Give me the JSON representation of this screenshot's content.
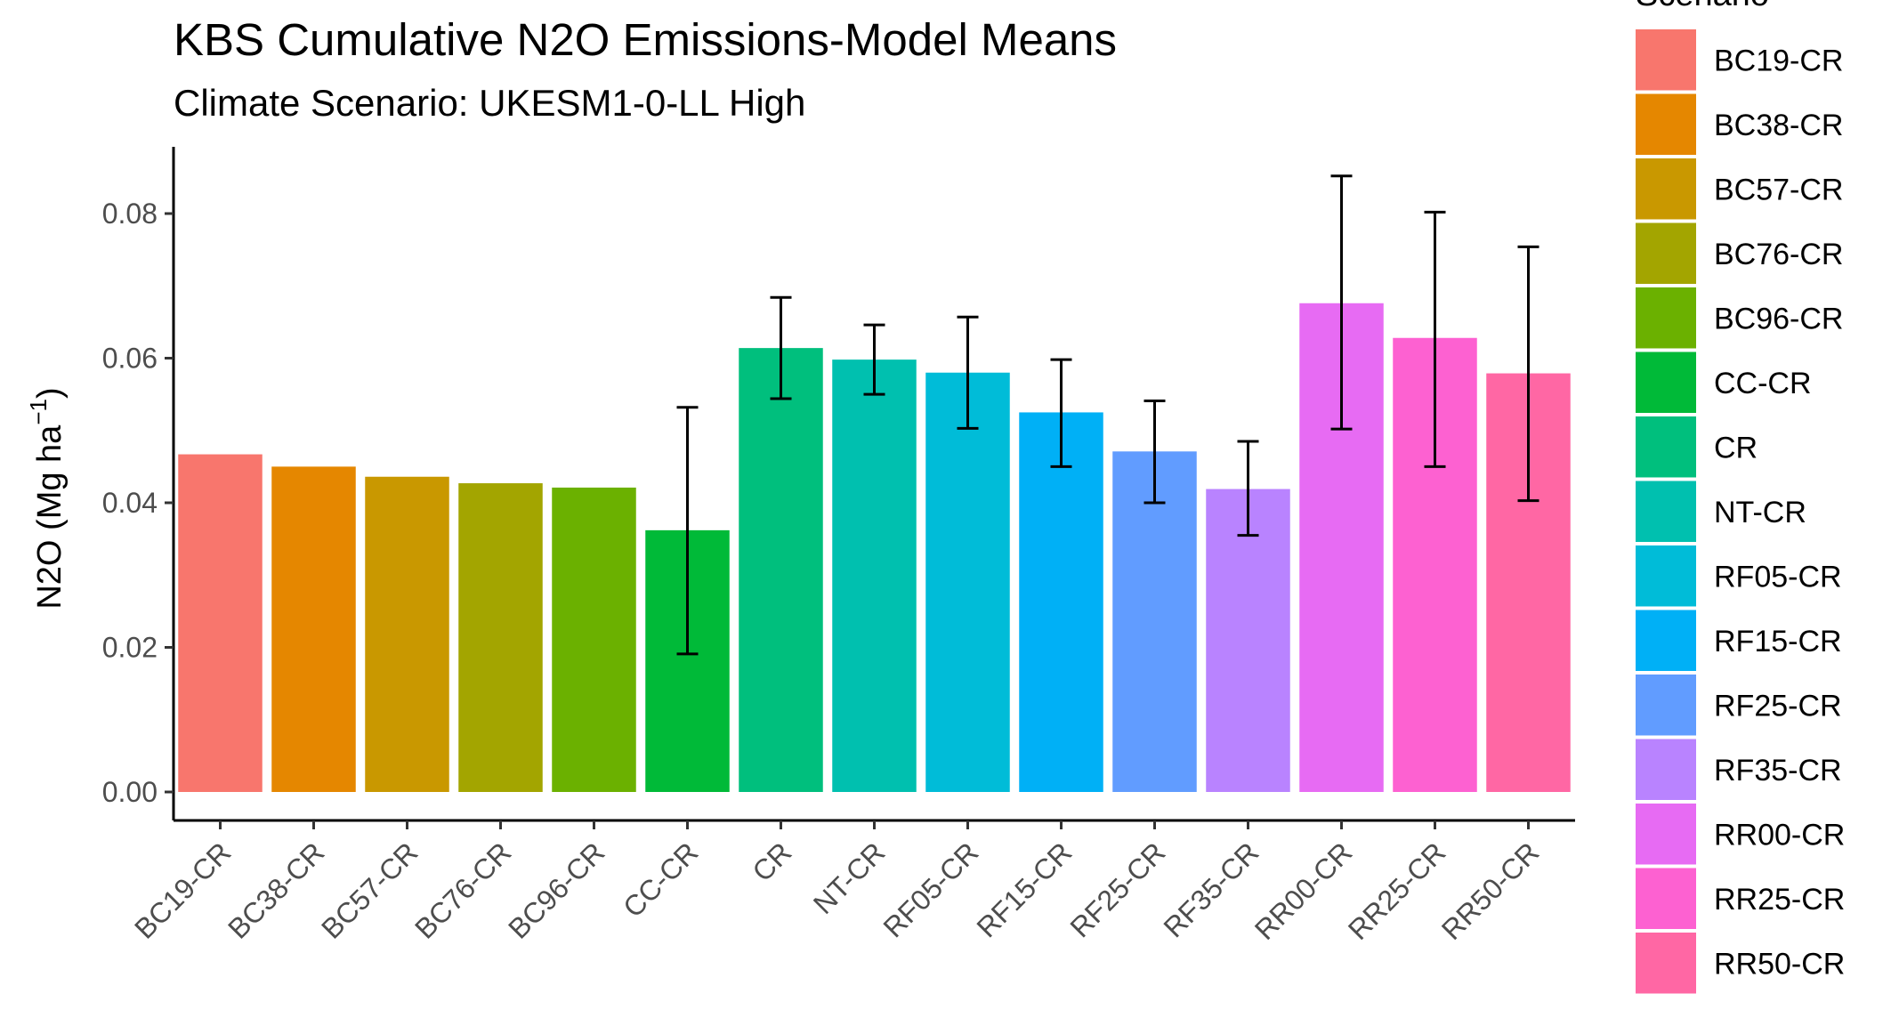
{
  "chart_data": {
    "type": "bar",
    "title": "KBS Cumulative N2O Emissions-Model Means",
    "subtitle": "Climate Scenario: UKESM1-0-LL High",
    "ylabel": "N2O (Mg ha",
    "ylabel_superscript": "−1",
    "ylabel_close": ")",
    "xlabel": "",
    "ylim": [
      0,
      0.09
    ],
    "yticks": [
      0.0,
      0.02,
      0.04,
      0.06,
      0.08
    ],
    "ytick_labels": [
      "0.00",
      "0.02",
      "0.04",
      "0.06",
      "0.08"
    ],
    "grid": false,
    "legend": {
      "title": "Scenario",
      "position": "right"
    },
    "categories": [
      "BC19-CR",
      "BC38-CR",
      "BC57-CR",
      "BC76-CR",
      "BC96-CR",
      "CC-CR",
      "CR",
      "NT-CR",
      "RF05-CR",
      "RF15-CR",
      "RF25-CR",
      "RF35-CR",
      "RR00-CR",
      "RR25-CR",
      "RR50-CR"
    ],
    "values": [
      0.0467,
      0.045,
      0.0436,
      0.0427,
      0.0421,
      0.0362,
      0.0614,
      0.0598,
      0.058,
      0.0525,
      0.0471,
      0.0419,
      0.0676,
      0.0628,
      0.0579
    ],
    "error_low": [
      null,
      null,
      null,
      null,
      null,
      0.0191,
      0.0544,
      0.055,
      0.0503,
      0.045,
      0.04,
      0.0355,
      0.0502,
      0.045,
      0.0403
    ],
    "error_high": [
      null,
      null,
      null,
      null,
      null,
      0.0532,
      0.0684,
      0.0646,
      0.0657,
      0.0598,
      0.0541,
      0.0485,
      0.0852,
      0.0802,
      0.0754
    ],
    "colors": [
      "#F8766D",
      "#E58700",
      "#C99800",
      "#A3A500",
      "#6BB100",
      "#00BA38",
      "#00BF7D",
      "#00C0AF",
      "#00BCD8",
      "#00B0F6",
      "#619CFF",
      "#B983FF",
      "#E76BF3",
      "#FD61D1",
      "#FF67A4"
    ]
  }
}
